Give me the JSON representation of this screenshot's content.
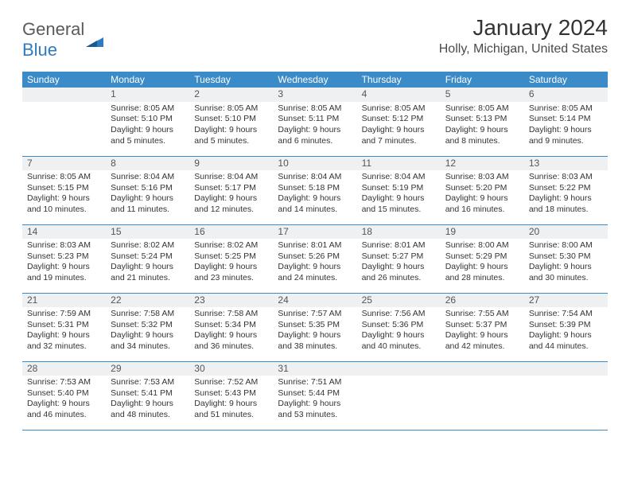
{
  "logo": {
    "text_general": "General",
    "text_blue": "Blue",
    "icon_color": "#2f7bbf"
  },
  "title": "January 2024",
  "location": "Holly, Michigan, United States",
  "colors": {
    "header_bg": "#3b8bc9",
    "header_text": "#ffffff",
    "daynum_bg": "#eef0f2",
    "border": "#3b8bc9",
    "text": "#333333"
  },
  "layout": {
    "first_weekday_offset": 1,
    "days_in_month": 31
  },
  "weekdays": [
    "Sunday",
    "Monday",
    "Tuesday",
    "Wednesday",
    "Thursday",
    "Friday",
    "Saturday"
  ],
  "days": [
    {
      "n": 1,
      "sunrise": "8:05 AM",
      "sunset": "5:10 PM",
      "daylight": "9 hours and 5 minutes."
    },
    {
      "n": 2,
      "sunrise": "8:05 AM",
      "sunset": "5:10 PM",
      "daylight": "9 hours and 5 minutes."
    },
    {
      "n": 3,
      "sunrise": "8:05 AM",
      "sunset": "5:11 PM",
      "daylight": "9 hours and 6 minutes."
    },
    {
      "n": 4,
      "sunrise": "8:05 AM",
      "sunset": "5:12 PM",
      "daylight": "9 hours and 7 minutes."
    },
    {
      "n": 5,
      "sunrise": "8:05 AM",
      "sunset": "5:13 PM",
      "daylight": "9 hours and 8 minutes."
    },
    {
      "n": 6,
      "sunrise": "8:05 AM",
      "sunset": "5:14 PM",
      "daylight": "9 hours and 9 minutes."
    },
    {
      "n": 7,
      "sunrise": "8:05 AM",
      "sunset": "5:15 PM",
      "daylight": "9 hours and 10 minutes."
    },
    {
      "n": 8,
      "sunrise": "8:04 AM",
      "sunset": "5:16 PM",
      "daylight": "9 hours and 11 minutes."
    },
    {
      "n": 9,
      "sunrise": "8:04 AM",
      "sunset": "5:17 PM",
      "daylight": "9 hours and 12 minutes."
    },
    {
      "n": 10,
      "sunrise": "8:04 AM",
      "sunset": "5:18 PM",
      "daylight": "9 hours and 14 minutes."
    },
    {
      "n": 11,
      "sunrise": "8:04 AM",
      "sunset": "5:19 PM",
      "daylight": "9 hours and 15 minutes."
    },
    {
      "n": 12,
      "sunrise": "8:03 AM",
      "sunset": "5:20 PM",
      "daylight": "9 hours and 16 minutes."
    },
    {
      "n": 13,
      "sunrise": "8:03 AM",
      "sunset": "5:22 PM",
      "daylight": "9 hours and 18 minutes."
    },
    {
      "n": 14,
      "sunrise": "8:03 AM",
      "sunset": "5:23 PM",
      "daylight": "9 hours and 19 minutes."
    },
    {
      "n": 15,
      "sunrise": "8:02 AM",
      "sunset": "5:24 PM",
      "daylight": "9 hours and 21 minutes."
    },
    {
      "n": 16,
      "sunrise": "8:02 AM",
      "sunset": "5:25 PM",
      "daylight": "9 hours and 23 minutes."
    },
    {
      "n": 17,
      "sunrise": "8:01 AM",
      "sunset": "5:26 PM",
      "daylight": "9 hours and 24 minutes."
    },
    {
      "n": 18,
      "sunrise": "8:01 AM",
      "sunset": "5:27 PM",
      "daylight": "9 hours and 26 minutes."
    },
    {
      "n": 19,
      "sunrise": "8:00 AM",
      "sunset": "5:29 PM",
      "daylight": "9 hours and 28 minutes."
    },
    {
      "n": 20,
      "sunrise": "8:00 AM",
      "sunset": "5:30 PM",
      "daylight": "9 hours and 30 minutes."
    },
    {
      "n": 21,
      "sunrise": "7:59 AM",
      "sunset": "5:31 PM",
      "daylight": "9 hours and 32 minutes."
    },
    {
      "n": 22,
      "sunrise": "7:58 AM",
      "sunset": "5:32 PM",
      "daylight": "9 hours and 34 minutes."
    },
    {
      "n": 23,
      "sunrise": "7:58 AM",
      "sunset": "5:34 PM",
      "daylight": "9 hours and 36 minutes."
    },
    {
      "n": 24,
      "sunrise": "7:57 AM",
      "sunset": "5:35 PM",
      "daylight": "9 hours and 38 minutes."
    },
    {
      "n": 25,
      "sunrise": "7:56 AM",
      "sunset": "5:36 PM",
      "daylight": "9 hours and 40 minutes."
    },
    {
      "n": 26,
      "sunrise": "7:55 AM",
      "sunset": "5:37 PM",
      "daylight": "9 hours and 42 minutes."
    },
    {
      "n": 27,
      "sunrise": "7:54 AM",
      "sunset": "5:39 PM",
      "daylight": "9 hours and 44 minutes."
    },
    {
      "n": 28,
      "sunrise": "7:53 AM",
      "sunset": "5:40 PM",
      "daylight": "9 hours and 46 minutes."
    },
    {
      "n": 29,
      "sunrise": "7:53 AM",
      "sunset": "5:41 PM",
      "daylight": "9 hours and 48 minutes."
    },
    {
      "n": 30,
      "sunrise": "7:52 AM",
      "sunset": "5:43 PM",
      "daylight": "9 hours and 51 minutes."
    },
    {
      "n": 31,
      "sunrise": "7:51 AM",
      "sunset": "5:44 PM",
      "daylight": "9 hours and 53 minutes."
    }
  ],
  "labels": {
    "sunrise": "Sunrise:",
    "sunset": "Sunset:",
    "daylight": "Daylight:"
  }
}
